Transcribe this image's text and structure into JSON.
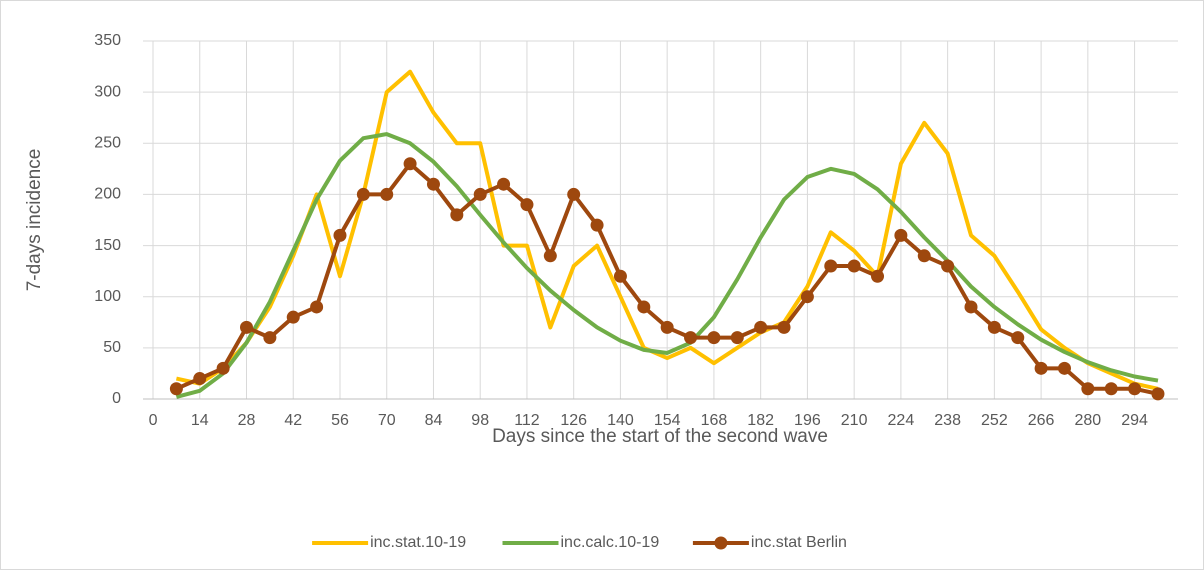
{
  "chart_data": {
    "type": "line",
    "y_label": "7-days incidence",
    "x_label": "Days since the start of the second wave",
    "x": [
      7,
      14,
      21,
      28,
      35,
      42,
      49,
      56,
      63,
      70,
      77,
      84,
      91,
      98,
      105,
      112,
      119,
      126,
      133,
      140,
      147,
      154,
      161,
      168,
      175,
      182,
      189,
      196,
      203,
      210,
      217,
      224,
      231,
      238,
      245,
      252,
      259,
      266,
      273,
      280,
      287,
      294,
      301
    ],
    "series": [
      {
        "name": "inc.stat.10-19",
        "color": "#ffc000",
        "markers": false,
        "values": [
          20,
          15,
          30,
          55,
          90,
          140,
          200,
          120,
          200,
          300,
          320,
          280,
          250,
          250,
          150,
          150,
          70,
          130,
          150,
          100,
          50,
          40,
          50,
          35,
          50,
          65,
          75,
          110,
          163,
          145,
          120,
          230,
          270,
          240,
          160,
          140,
          105,
          68,
          50,
          35,
          25,
          15,
          10
        ]
      },
      {
        "name": "inc.calc.10-19",
        "color": "#70ad47",
        "markers": false,
        "values": [
          2,
          8,
          25,
          55,
          95,
          145,
          195,
          233,
          255,
          259,
          250,
          232,
          208,
          180,
          153,
          128,
          106,
          87,
          70,
          57,
          48,
          45,
          55,
          80,
          117,
          158,
          195,
          217,
          225,
          220,
          205,
          183,
          158,
          135,
          110,
          90,
          73,
          58,
          46,
          36,
          28,
          22,
          18
        ]
      },
      {
        "name": "inc.stat Berlin",
        "color": "#9e480e",
        "markers": true,
        "values": [
          10,
          20,
          30,
          70,
          60,
          80,
          90,
          160,
          200,
          200,
          230,
          210,
          180,
          200,
          210,
          190,
          140,
          200,
          170,
          120,
          90,
          70,
          60,
          60,
          60,
          70,
          70,
          100,
          130,
          130,
          120,
          160,
          140,
          130,
          90,
          70,
          60,
          30,
          30,
          10,
          10,
          10,
          5
        ]
      }
    ],
    "xlim": [
      -3,
      307
    ],
    "xticks": [
      0,
      14,
      28,
      42,
      56,
      70,
      84,
      98,
      112,
      126,
      140,
      154,
      168,
      182,
      196,
      210,
      224,
      238,
      252,
      266,
      280,
      294
    ],
    "ylim": [
      0,
      350
    ],
    "yticks": [
      0,
      50,
      100,
      150,
      200,
      250,
      300,
      350
    ],
    "grid": true,
    "legend": "bottom"
  }
}
